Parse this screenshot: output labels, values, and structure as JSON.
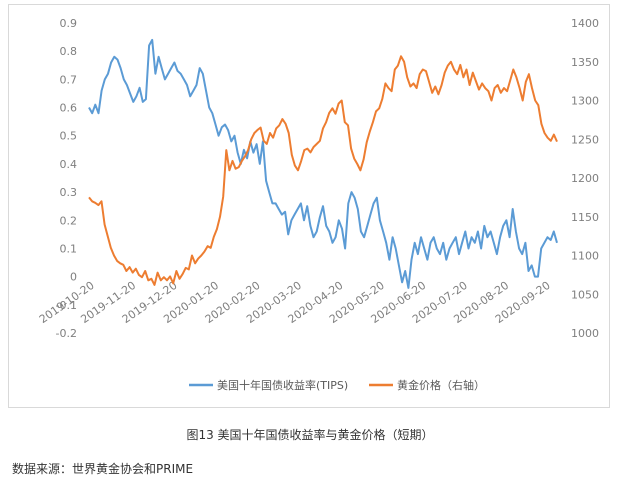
{
  "caption": "图13 美国十年国债收益率与黄金价格（短期）",
  "source": "数据来源：世界黄金协会和PRIME",
  "chart_data": {
    "type": "line",
    "x_tick_labels": [
      "2019-10-20",
      "2019-11-20",
      "2019-12-20",
      "2020-01-20",
      "2020-02-20",
      "2020-03-20",
      "2020-04-20",
      "2020-05-20",
      "2020-06-20",
      "2020-07-20",
      "2020-08-20",
      "2020-09-20"
    ],
    "left_axis": {
      "ticks": [
        "-0.2",
        "-0.1",
        "0",
        "0.1",
        "0.2",
        "0.3",
        "0.4",
        "0.5",
        "0.6",
        "0.7",
        "0.8",
        "0.9"
      ],
      "ylim": [
        -0.2,
        0.9
      ]
    },
    "right_axis": {
      "ticks": [
        "1000",
        "1050",
        "1100",
        "1150",
        "1200",
        "1250",
        "1300",
        "1350",
        "1400"
      ],
      "ylim": [
        1000,
        1400
      ]
    },
    "series": [
      {
        "name": "美国十年国债收益率(TIPS)",
        "axis": "left",
        "color": "#5b9bd5",
        "values": [
          0.6,
          0.58,
          0.61,
          0.58,
          0.66,
          0.7,
          0.72,
          0.76,
          0.78,
          0.77,
          0.74,
          0.7,
          0.68,
          0.65,
          0.62,
          0.64,
          0.67,
          0.62,
          0.63,
          0.82,
          0.84,
          0.72,
          0.78,
          0.74,
          0.7,
          0.72,
          0.74,
          0.76,
          0.73,
          0.72,
          0.7,
          0.68,
          0.64,
          0.66,
          0.68,
          0.74,
          0.72,
          0.66,
          0.6,
          0.58,
          0.54,
          0.5,
          0.53,
          0.54,
          0.52,
          0.48,
          0.5,
          0.44,
          0.4,
          0.45,
          0.42,
          0.48,
          0.44,
          0.47,
          0.4,
          0.48,
          0.34,
          0.3,
          0.26,
          0.26,
          0.24,
          0.22,
          0.23,
          0.15,
          0.2,
          0.22,
          0.24,
          0.26,
          0.2,
          0.25,
          0.18,
          0.14,
          0.16,
          0.21,
          0.25,
          0.18,
          0.16,
          0.12,
          0.14,
          0.2,
          0.17,
          0.1,
          0.26,
          0.3,
          0.28,
          0.24,
          0.16,
          0.14,
          0.18,
          0.22,
          0.26,
          0.28,
          0.2,
          0.16,
          0.12,
          0.06,
          0.14,
          0.1,
          0.04,
          -0.02,
          0.02,
          -0.04,
          0.06,
          0.12,
          0.08,
          0.14,
          0.1,
          0.06,
          0.12,
          0.14,
          0.1,
          0.08,
          0.12,
          0.06,
          0.1,
          0.12,
          0.14,
          0.08,
          0.12,
          0.16,
          0.1,
          0.14,
          0.12,
          0.16,
          0.1,
          0.18,
          0.14,
          0.16,
          0.12,
          0.08,
          0.14,
          0.18,
          0.2,
          0.14,
          0.24,
          0.16,
          0.1,
          0.08,
          0.12,
          0.02,
          0.04,
          0.0,
          0.0,
          0.1,
          0.12,
          0.14,
          0.13,
          0.16,
          0.12
        ]
      },
      {
        "name": "黄金价格（右轴）",
        "axis": "right",
        "color": "#ed7d31",
        "values": [
          1175,
          1170,
          1168,
          1165,
          1170,
          1140,
          1125,
          1110,
          1100,
          1093,
          1090,
          1088,
          1080,
          1085,
          1078,
          1083,
          1075,
          1072,
          1080,
          1068,
          1070,
          1062,
          1078,
          1068,
          1072,
          1068,
          1073,
          1064,
          1080,
          1070,
          1076,
          1084,
          1082,
          1100,
          1090,
          1096,
          1100,
          1105,
          1112,
          1110,
          1124,
          1134,
          1150,
          1176,
          1236,
          1210,
          1222,
          1212,
          1214,
          1222,
          1228,
          1236,
          1250,
          1258,
          1262,
          1265,
          1248,
          1244,
          1258,
          1252,
          1264,
          1268,
          1276,
          1270,
          1258,
          1230,
          1216,
          1210,
          1222,
          1236,
          1238,
          1233,
          1240,
          1244,
          1248,
          1264,
          1272,
          1284,
          1290,
          1283,
          1296,
          1300,
          1272,
          1268,
          1238,
          1225,
          1218,
          1210,
          1224,
          1246,
          1260,
          1272,
          1286,
          1290,
          1302,
          1322,
          1316,
          1312,
          1340,
          1345,
          1357,
          1350,
          1330,
          1318,
          1322,
          1316,
          1334,
          1340,
          1338,
          1324,
          1310,
          1318,
          1308,
          1320,
          1336,
          1345,
          1350,
          1340,
          1334,
          1346,
          1330,
          1340,
          1320,
          1336,
          1325,
          1314,
          1322,
          1316,
          1312,
          1300,
          1316,
          1320,
          1310,
          1316,
          1312,
          1326,
          1340,
          1330,
          1316,
          1300,
          1324,
          1334,
          1316,
          1300,
          1294,
          1270,
          1258,
          1252,
          1248,
          1256,
          1247
        ]
      }
    ],
    "legend": {
      "position": "bottom"
    },
    "grid": false
  }
}
